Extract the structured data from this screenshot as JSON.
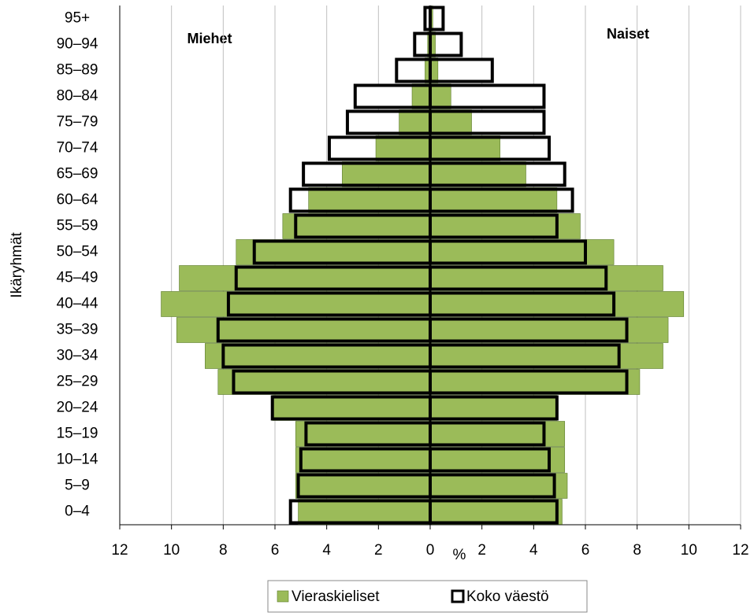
{
  "chart_data": {
    "type": "pyramid",
    "y_label": "Ikäryhmät",
    "x_label": "%",
    "annotations": [
      "Miehet",
      "Naiset"
    ],
    "categories": [
      "0–4",
      "5–9",
      "10–14",
      "15–19",
      "20–24",
      "25–29",
      "30–34",
      "35–39",
      "40–44",
      "45–49",
      "50–54",
      "55–59",
      "60–64",
      "65–69",
      "70–74",
      "75–79",
      "80–84",
      "85–89",
      "90–94",
      "95+"
    ],
    "series": [
      {
        "name": "Vieraskieliset",
        "color": "#9bbb59",
        "style": "filled",
        "men": [
          -5.1,
          -5.2,
          -5.2,
          -5.2,
          -6.1,
          -8.2,
          -8.7,
          -9.8,
          -10.4,
          -9.7,
          -7.5,
          -5.7,
          -4.7,
          -3.4,
          -2.1,
          -1.2,
          -0.7,
          -0.2,
          -0.1,
          0
        ],
        "women": [
          5.1,
          5.3,
          5.2,
          5.2,
          4.9,
          8.1,
          9.0,
          9.2,
          9.8,
          9.0,
          7.1,
          5.8,
          4.9,
          3.7,
          2.7,
          1.6,
          0.8,
          0.3,
          0.2,
          0.1
        ]
      },
      {
        "name": "Koko väestö",
        "color": "#000000",
        "style": "outline",
        "men": [
          -5.4,
          -5.1,
          -5.0,
          -4.8,
          -6.1,
          -7.6,
          -8.0,
          -8.2,
          -7.8,
          -7.5,
          -6.8,
          -5.2,
          -5.4,
          -4.9,
          -3.9,
          -3.2,
          -2.9,
          -1.3,
          -0.6,
          -0.2
        ],
        "women": [
          4.9,
          4.8,
          4.6,
          4.4,
          4.9,
          7.6,
          7.3,
          7.6,
          7.1,
          6.8,
          6.0,
          4.9,
          5.5,
          5.2,
          4.6,
          4.4,
          4.4,
          2.4,
          1.2,
          0.5
        ]
      }
    ],
    "xlim": [
      -12,
      12
    ],
    "xticks": [
      {
        "value": -12,
        "label": "12"
      },
      {
        "value": -10,
        "label": "10"
      },
      {
        "value": -8,
        "label": "8"
      },
      {
        "value": -6,
        "label": "6"
      },
      {
        "value": -4,
        "label": "4"
      },
      {
        "value": -2,
        "label": "2"
      },
      0,
      2,
      4,
      6,
      8,
      10,
      12
    ],
    "grid": true,
    "legend": "bottom"
  }
}
